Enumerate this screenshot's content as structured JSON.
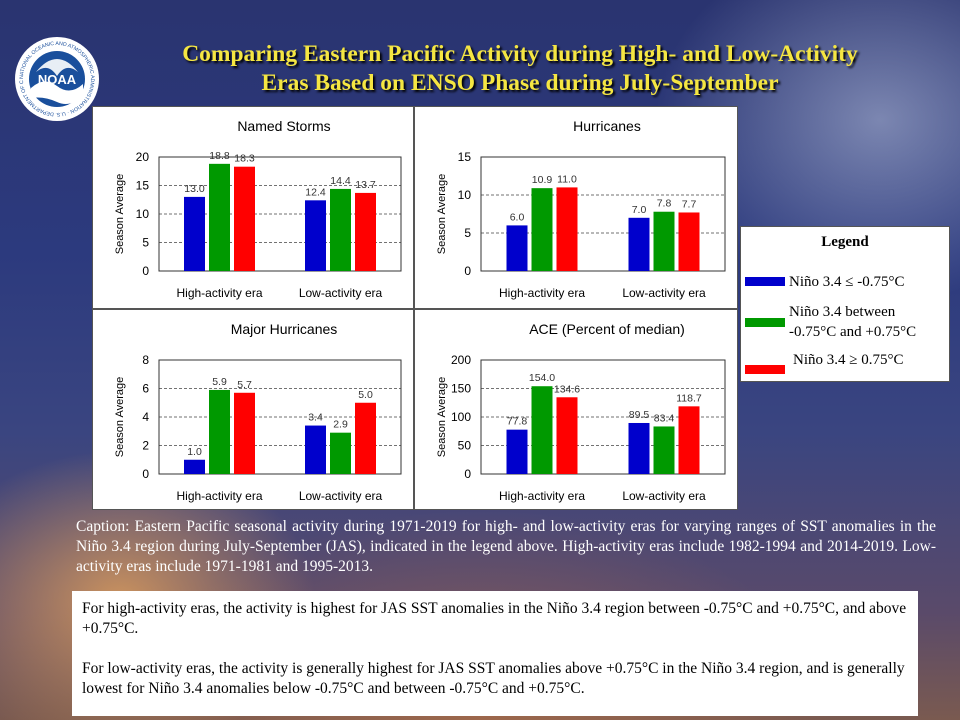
{
  "title": {
    "line1": "Comparing Eastern Pacific Activity during High- and Low-Activity",
    "line2": "Eras Based on ENSO Phase during July-September"
  },
  "logo": {
    "text": "NOAA",
    "ring_text": "NATIONAL OCEANIC AND ATMOSPHERIC ADMINISTRATION · U.S. DEPARTMENT OF COMMERCE ·"
  },
  "colors": {
    "blue": "#0000cc",
    "green": "#009900",
    "red": "#ff0000"
  },
  "legend": {
    "title": "Legend",
    "items": [
      {
        "color": "#0000cc",
        "line1": "Niño 3.4 ≤ -0.75°C",
        "line2": ""
      },
      {
        "color": "#009900",
        "line1": "Niño 3.4 between",
        "line2": "-0.75°C and +0.75°C"
      },
      {
        "color": "#ff0000",
        "line1": "Niño 3.4 ≥  0.75°C",
        "line2": ""
      }
    ]
  },
  "chart_data": [
    {
      "type": "bar",
      "title": "Named Storms",
      "ylabel": "Season Average",
      "categories": [
        "High-activity era",
        "Low-activity era"
      ],
      "ylim": [
        0,
        20
      ],
      "yticks": [
        0,
        5,
        10,
        15,
        20
      ],
      "series": [
        {
          "color": "#0000cc",
          "values": [
            13.0,
            12.4
          ],
          "labels": [
            "13.0",
            "12.4"
          ]
        },
        {
          "color": "#009900",
          "values": [
            18.8,
            14.4
          ],
          "labels": [
            "18.8",
            "14.4"
          ]
        },
        {
          "color": "#ff0000",
          "values": [
            18.3,
            13.7
          ],
          "labels": [
            "18.3",
            "13.7"
          ]
        }
      ]
    },
    {
      "type": "bar",
      "title": "Hurricanes",
      "ylabel": "Season Average",
      "categories": [
        "High-activity era",
        "Low-activity era"
      ],
      "ylim": [
        0,
        15
      ],
      "yticks": [
        0,
        5,
        10,
        15
      ],
      "series": [
        {
          "color": "#0000cc",
          "values": [
            6.0,
            7.0
          ],
          "labels": [
            "6.0",
            "7.0"
          ]
        },
        {
          "color": "#009900",
          "values": [
            10.9,
            7.8
          ],
          "labels": [
            "10.9",
            "7.8"
          ]
        },
        {
          "color": "#ff0000",
          "values": [
            11.0,
            7.7
          ],
          "labels": [
            "11.0",
            "7.7"
          ]
        }
      ]
    },
    {
      "type": "bar",
      "title": "Major Hurricanes",
      "ylabel": "Season Average",
      "categories": [
        "High-activity era",
        "Low-activity era"
      ],
      "ylim": [
        0,
        8
      ],
      "yticks": [
        0,
        2,
        4,
        6,
        8
      ],
      "series": [
        {
          "color": "#0000cc",
          "values": [
            1.0,
            3.4
          ],
          "labels": [
            "1.0",
            "3.4"
          ]
        },
        {
          "color": "#009900",
          "values": [
            5.9,
            2.9
          ],
          "labels": [
            "5.9",
            "2.9"
          ]
        },
        {
          "color": "#ff0000",
          "values": [
            5.7,
            5.0
          ],
          "labels": [
            "5.7",
            "5.0"
          ]
        }
      ]
    },
    {
      "type": "bar",
      "title": "ACE (Percent of median)",
      "ylabel": "Season Average",
      "categories": [
        "High-activity era",
        "Low-activity era"
      ],
      "ylim": [
        0,
        200
      ],
      "yticks": [
        0,
        50,
        100,
        150,
        200
      ],
      "series": [
        {
          "color": "#0000cc",
          "values": [
            77.8,
            89.5
          ],
          "labels": [
            "77.8",
            "89.5"
          ]
        },
        {
          "color": "#009900",
          "values": [
            154.0,
            83.4
          ],
          "labels": [
            "154.0",
            "83.4"
          ]
        },
        {
          "color": "#ff0000",
          "values": [
            134.6,
            118.7
          ],
          "labels": [
            "134.6",
            "118.7"
          ]
        }
      ]
    }
  ],
  "caption": "Caption: Eastern Pacific seasonal activity during 1971-2019 for high- and low-activity eras for varying ranges of SST anomalies in the Niño 3.4 region during July-September (JAS), indicated in the legend above. High-activity eras include 1982-1994 and 2014-2019.  Low-activity eras include 1971-1981 and 1995-2013.",
  "summary": {
    "p1": "For high-activity  eras, the activity  is highest for JAS SST anomalies in the Niño 3.4 region between -0.75°C and +0.75°C, and above +0.75°C.",
    "p2": "For low-activity  eras, the activity  is generally  highest for JAS SST anomalies above +0.75°C in the Niño 3.4 region, and is generally  lowest for Niño 3.4 anomalies below -0.75°C and between -0.75°C and +0.75°C."
  }
}
